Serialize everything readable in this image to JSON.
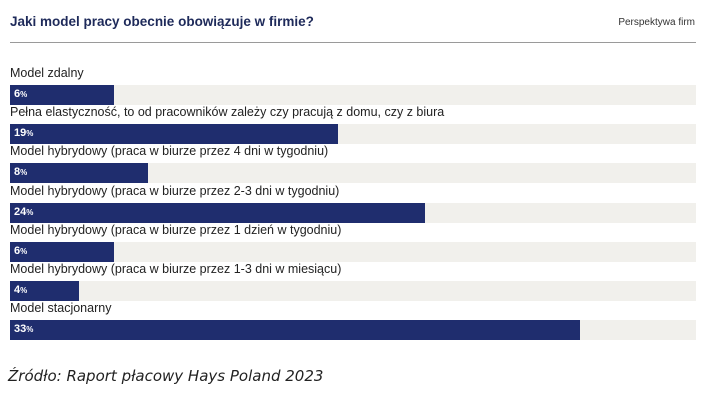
{
  "chart_data": {
    "type": "bar",
    "orientation": "horizontal",
    "title": "Jaki model pracy obecnie obowiązuje w firmie?",
    "subtitle": "Perspektywa firm",
    "categories": [
      "Model zdalny",
      "Pełna elastyczność, to od pracowników zależy czy pracują z domu, czy z biura",
      "Model hybrydowy (praca w biurze przez 4 dni w tygodniu)",
      "Model hybrydowy (praca w biurze przez 2-3 dni w tygodniu)",
      "Model hybrydowy (praca w biurze przez 1 dzień w tygodniu)",
      "Model hybrydowy (praca w biurze przez 1-3 dni w miesiącu)",
      "Model stacjonarny"
    ],
    "values": [
      6,
      19,
      8,
      24,
      6,
      4,
      33
    ],
    "unit": "%",
    "xlim": [
      0,
      39.7
    ],
    "bar_color": "#1f2d6e",
    "track_color": "#f1f0ec"
  },
  "source": "Źródło: Raport płacowy Hays Poland 2023"
}
